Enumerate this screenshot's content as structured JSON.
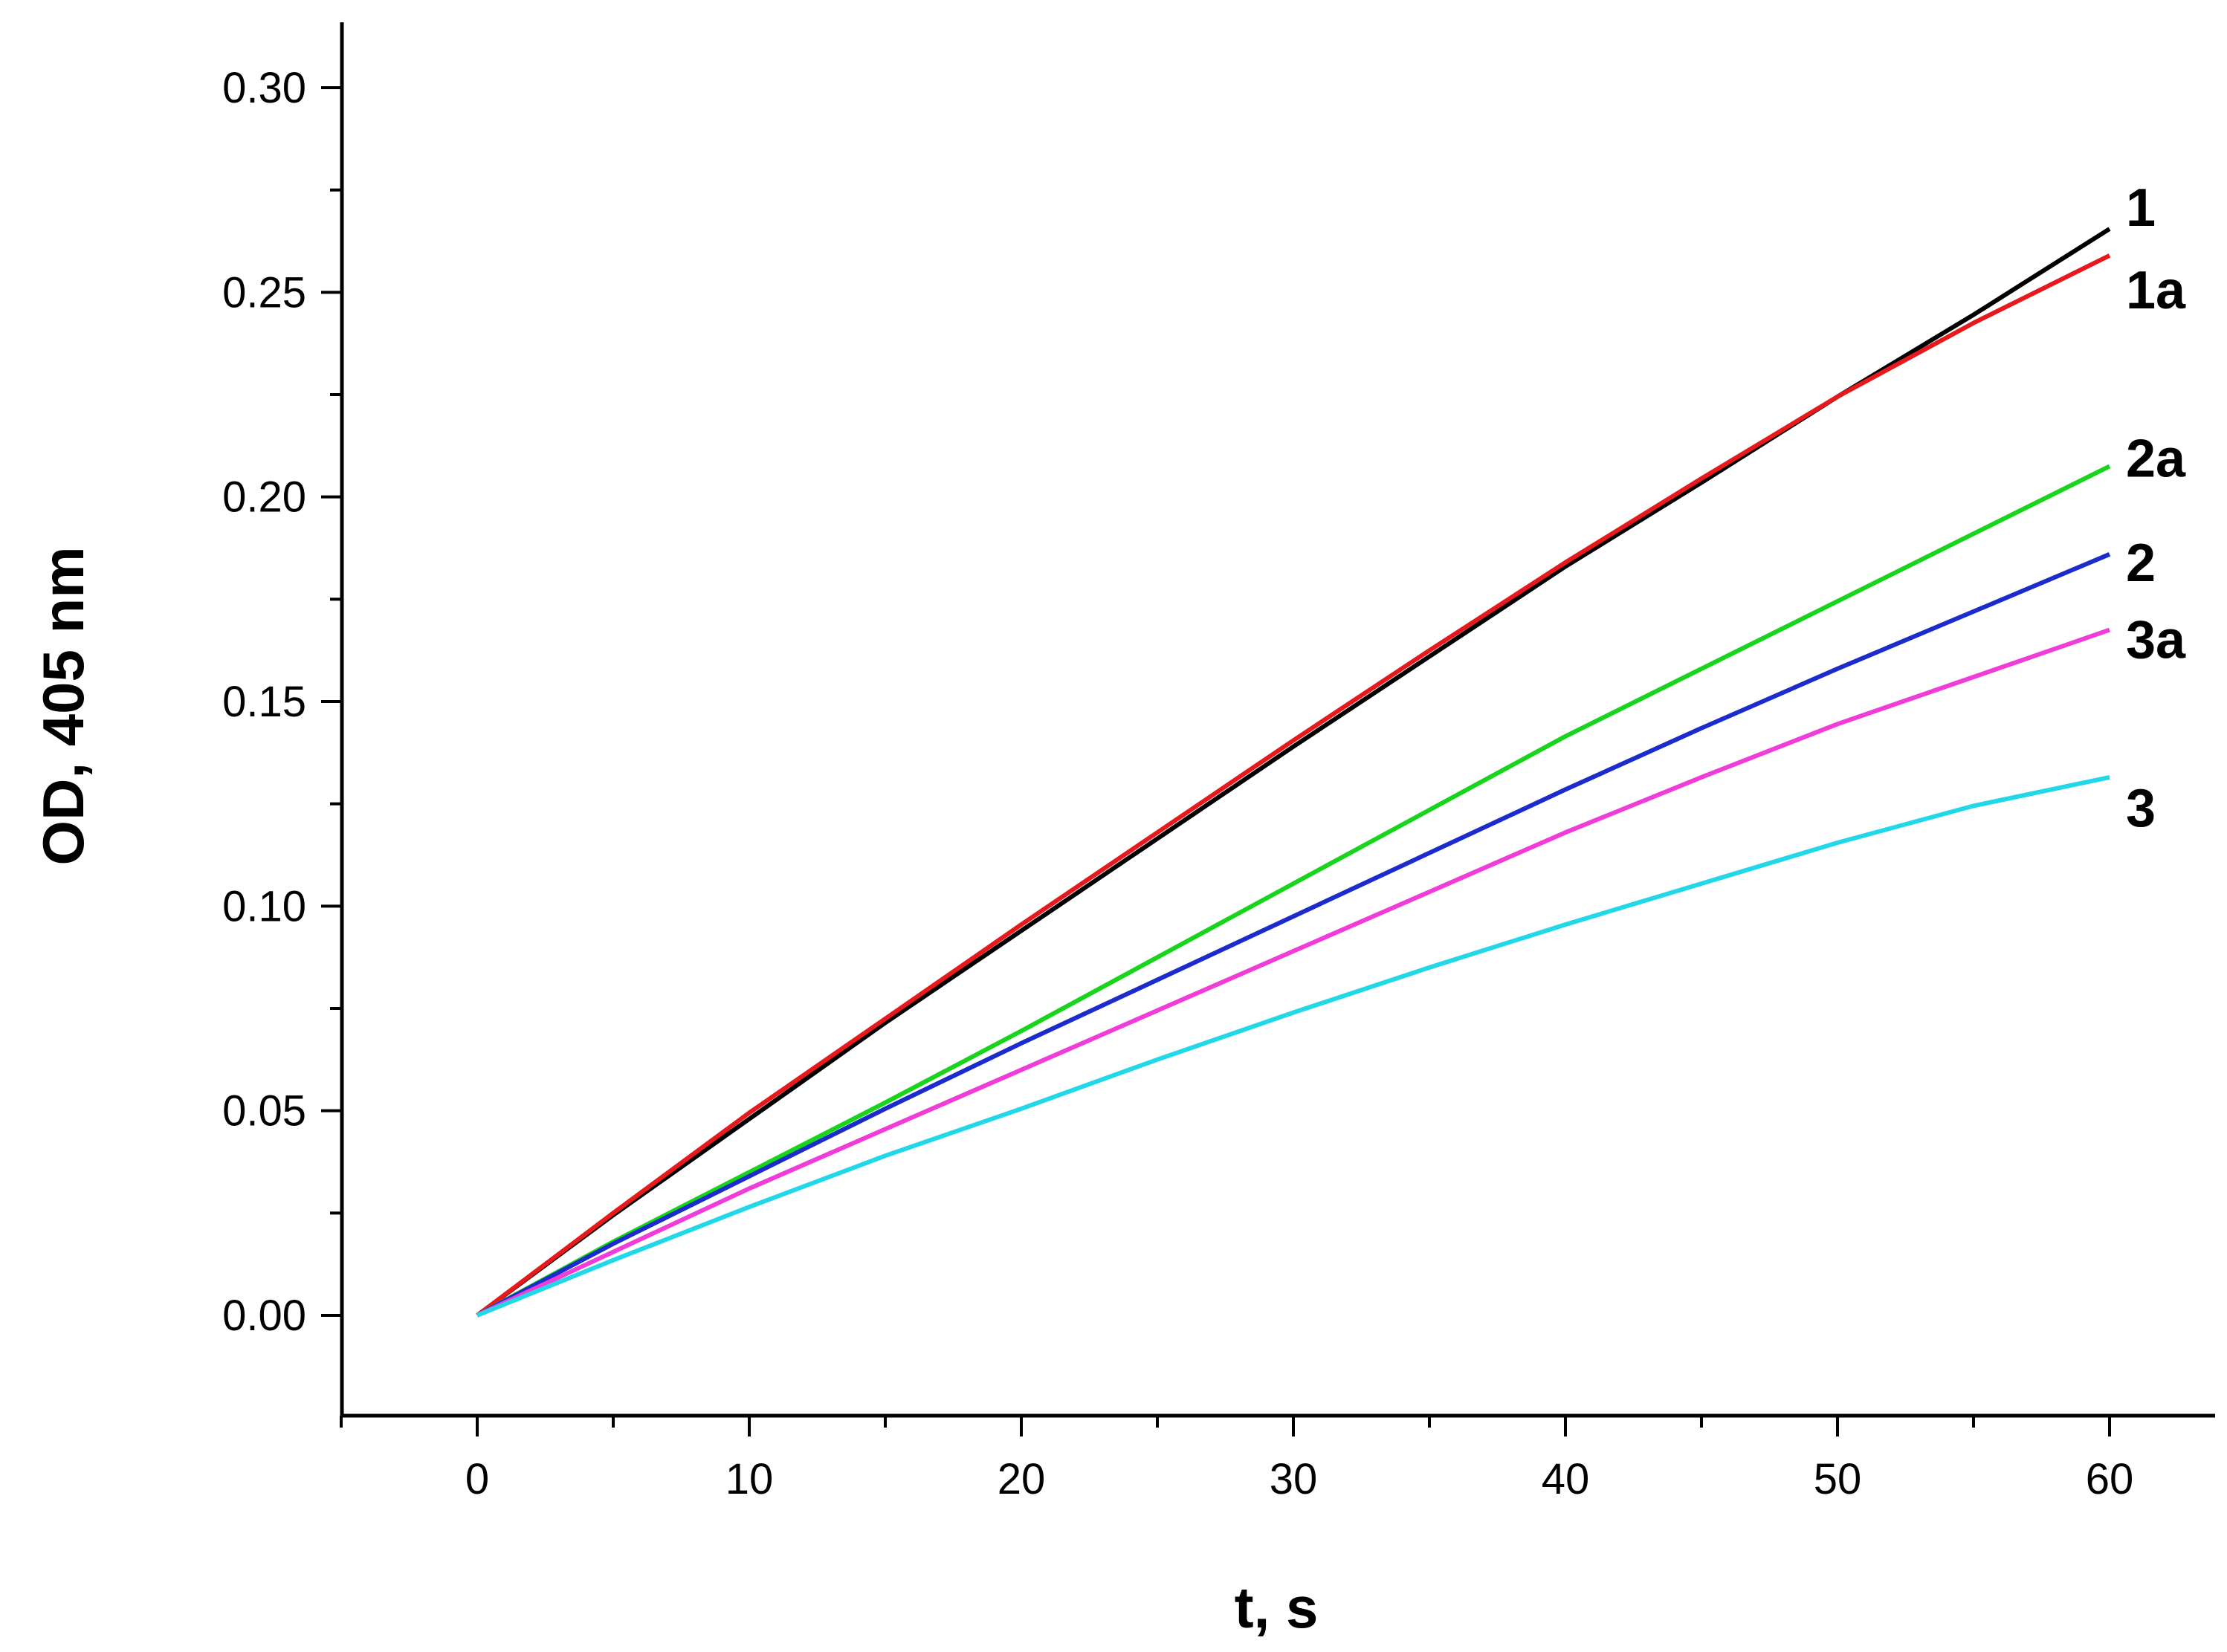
{
  "chart_data": {
    "type": "line",
    "title": "",
    "xlabel": "t, s",
    "ylabel": "OD, 405 nm",
    "xlim": [
      -5,
      64
    ],
    "ylim": [
      -0.025,
      0.315
    ],
    "xticks": [
      0,
      10,
      20,
      30,
      40,
      50,
      60
    ],
    "xtick_labels": [
      "0",
      "10",
      "20",
      "30",
      "40",
      "50",
      "60"
    ],
    "yticks": [
      0.0,
      0.05,
      0.1,
      0.15,
      0.2,
      0.25,
      0.3
    ],
    "ytick_labels": [
      "0.00",
      "0.05",
      "0.10",
      "0.15",
      "0.20",
      "0.25",
      "0.30"
    ],
    "grid": false,
    "legend": "inline labels at line ends",
    "x": [
      0,
      5,
      10,
      15,
      20,
      25,
      30,
      35,
      40,
      45,
      50,
      55,
      60
    ],
    "series": [
      {
        "name": "1",
        "color": "#000000",
        "values": [
          0,
          0.0245,
          0.048,
          0.0715,
          0.094,
          0.1165,
          0.139,
          0.161,
          0.183,
          0.2035,
          0.2245,
          0.2445,
          0.2655
        ]
      },
      {
        "name": "1a",
        "color": "#e8191c",
        "values": [
          0,
          0.025,
          0.0495,
          0.0725,
          0.0955,
          0.118,
          0.1405,
          0.1625,
          0.184,
          0.2045,
          0.2245,
          0.2425,
          0.259
        ]
      },
      {
        "name": "2a",
        "color": "#18d41c",
        "values": [
          0,
          0.018,
          0.035,
          0.052,
          0.0695,
          0.0875,
          0.1055,
          0.1235,
          0.1415,
          0.158,
          0.1745,
          0.191,
          0.2075
        ]
      },
      {
        "name": "2",
        "color": "#1c2ccc",
        "values": [
          0,
          0.0175,
          0.034,
          0.0505,
          0.0665,
          0.082,
          0.0975,
          0.113,
          0.1285,
          0.1435,
          0.158,
          0.172,
          0.186
        ]
      },
      {
        "name": "3a",
        "color": "#f03cd8",
        "values": [
          0,
          0.0155,
          0.031,
          0.0455,
          0.06,
          0.0745,
          0.089,
          0.1035,
          0.118,
          0.1315,
          0.1445,
          0.156,
          0.1675
        ]
      },
      {
        "name": "3",
        "color": "#22d8e8",
        "values": [
          0,
          0.0135,
          0.0265,
          0.039,
          0.0505,
          0.0625,
          0.074,
          0.085,
          0.0955,
          0.1055,
          0.1155,
          0.1245,
          0.1315
        ]
      }
    ]
  }
}
